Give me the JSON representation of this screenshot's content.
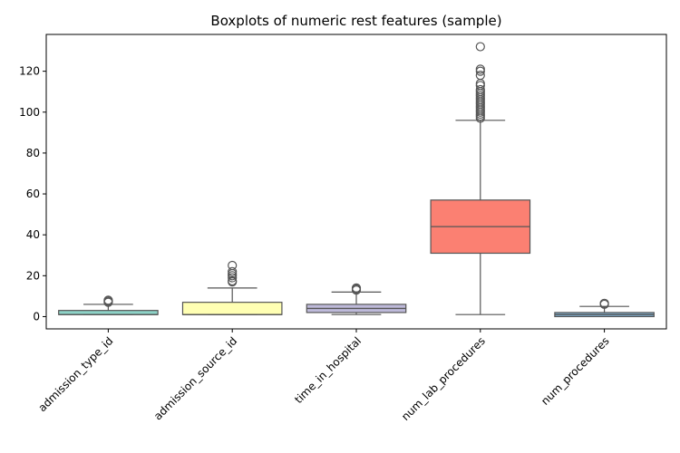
{
  "chart_data": {
    "type": "box",
    "title": "Boxplots of numeric rest features (sample)",
    "xlabel": "",
    "ylabel": "",
    "ylim": [
      -6,
      138
    ],
    "yticks": [
      0,
      20,
      40,
      60,
      80,
      100,
      120
    ],
    "grid": false,
    "categories": [
      "admission_type_id",
      "admission_source_id",
      "time_in_hospital",
      "num_lab_procedures",
      "num_procedures"
    ],
    "boxes": [
      {
        "name": "admission_type_id",
        "color": "#8dd3c7",
        "whislo": 1,
        "q1": 1,
        "med": 1,
        "q3": 3,
        "whishi": 6,
        "fliers": [
          7,
          7.5,
          8
        ]
      },
      {
        "name": "admission_source_id",
        "color": "#ffffb3",
        "whislo": 1,
        "q1": 1,
        "med": 1,
        "q3": 7,
        "whishi": 14,
        "fliers": [
          17,
          17.5,
          19,
          20,
          21,
          22,
          25
        ]
      },
      {
        "name": "time_in_hospital",
        "color": "#bebada",
        "whislo": 1,
        "q1": 2,
        "med": 4,
        "q3": 6,
        "whishi": 12,
        "fliers": [
          13,
          13.5,
          14
        ]
      },
      {
        "name": "num_lab_procedures",
        "color": "#fb8072",
        "whislo": 1,
        "q1": 31,
        "med": 44,
        "q3": 57,
        "whishi": 96,
        "fliers": [
          97,
          98,
          99,
          100,
          101,
          102,
          103,
          104,
          105,
          106,
          107,
          108,
          109,
          110,
          111,
          113,
          114,
          118,
          120,
          121,
          132
        ]
      },
      {
        "name": "num_procedures",
        "color": "#80b1d3",
        "whislo": 0,
        "q1": 0,
        "med": 1,
        "q3": 2,
        "whishi": 5,
        "fliers": [
          6,
          6.5
        ]
      }
    ]
  }
}
